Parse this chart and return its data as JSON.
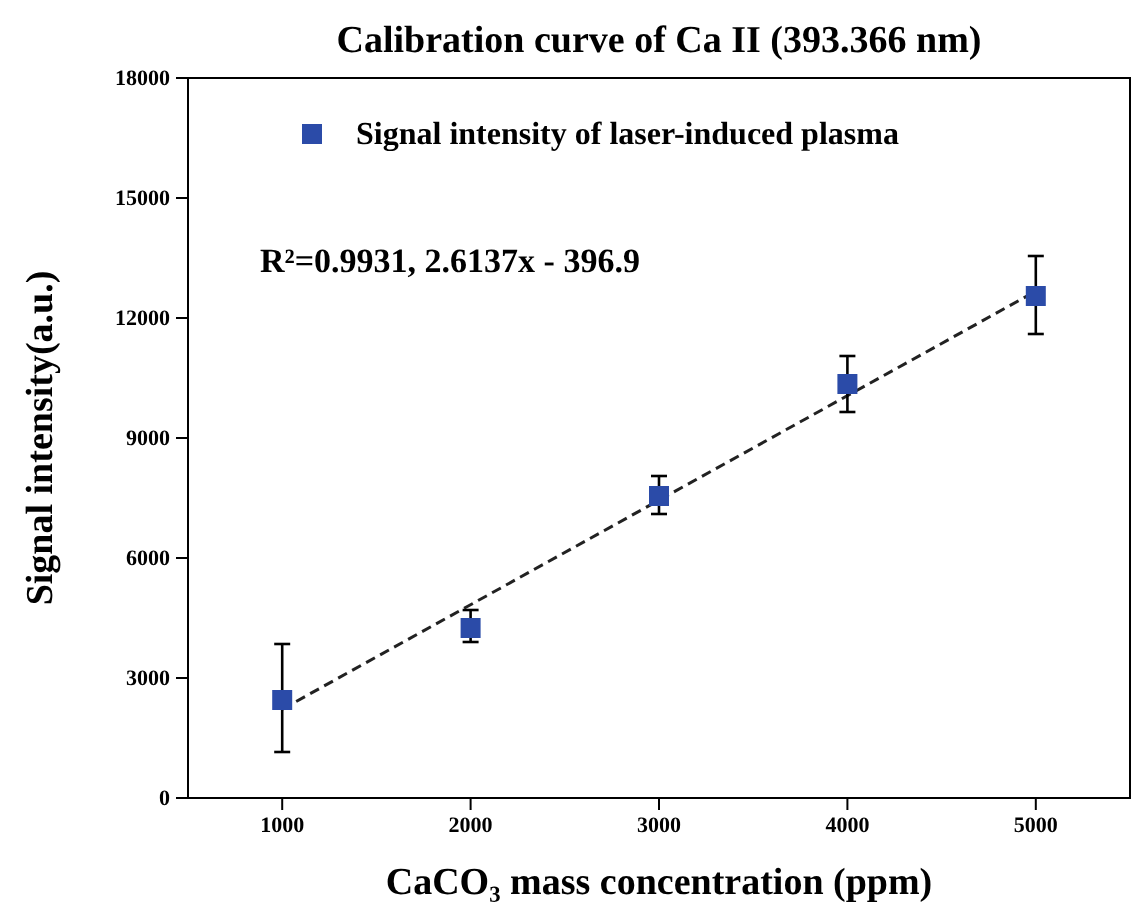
{
  "chart_data": {
    "type": "scatter",
    "title": "Calibration curve of Ca II (393.366 nm)",
    "xlabel": "CaCO₃ mass concentration (ppm)",
    "ylabel": "Signal intensity(a.u.)",
    "x": [
      1000,
      2000,
      3000,
      4000,
      5000
    ],
    "series": [
      {
        "name": "Signal intensity of laser-induced plasma",
        "color": "#2b4ba8",
        "values": [
          2450,
          4250,
          7550,
          10350,
          12550
        ],
        "errors": [
          [
            1150,
            3850
          ],
          [
            3900,
            4700
          ],
          [
            7100,
            8050
          ],
          [
            9650,
            11050
          ],
          [
            11600,
            13550
          ]
        ]
      },
      {
        "type": "line",
        "color": "#222222",
        "line_style": "dashed",
        "marker": "none",
        "x": [
          1000,
          5000
        ],
        "values": [
          2220,
          12670
        ]
      }
    ],
    "annotations": [
      "R²=0.9931, 2.6137x - 396.9"
    ],
    "marker": "square",
    "legend": "top",
    "grid": false,
    "xlim": [
      500,
      5500
    ],
    "xticks": [
      1000,
      2000,
      3000,
      4000,
      5000
    ],
    "ylim": [
      0,
      18000
    ],
    "yticks": [
      0,
      3000,
      6000,
      9000,
      12000,
      15000,
      18000
    ]
  }
}
